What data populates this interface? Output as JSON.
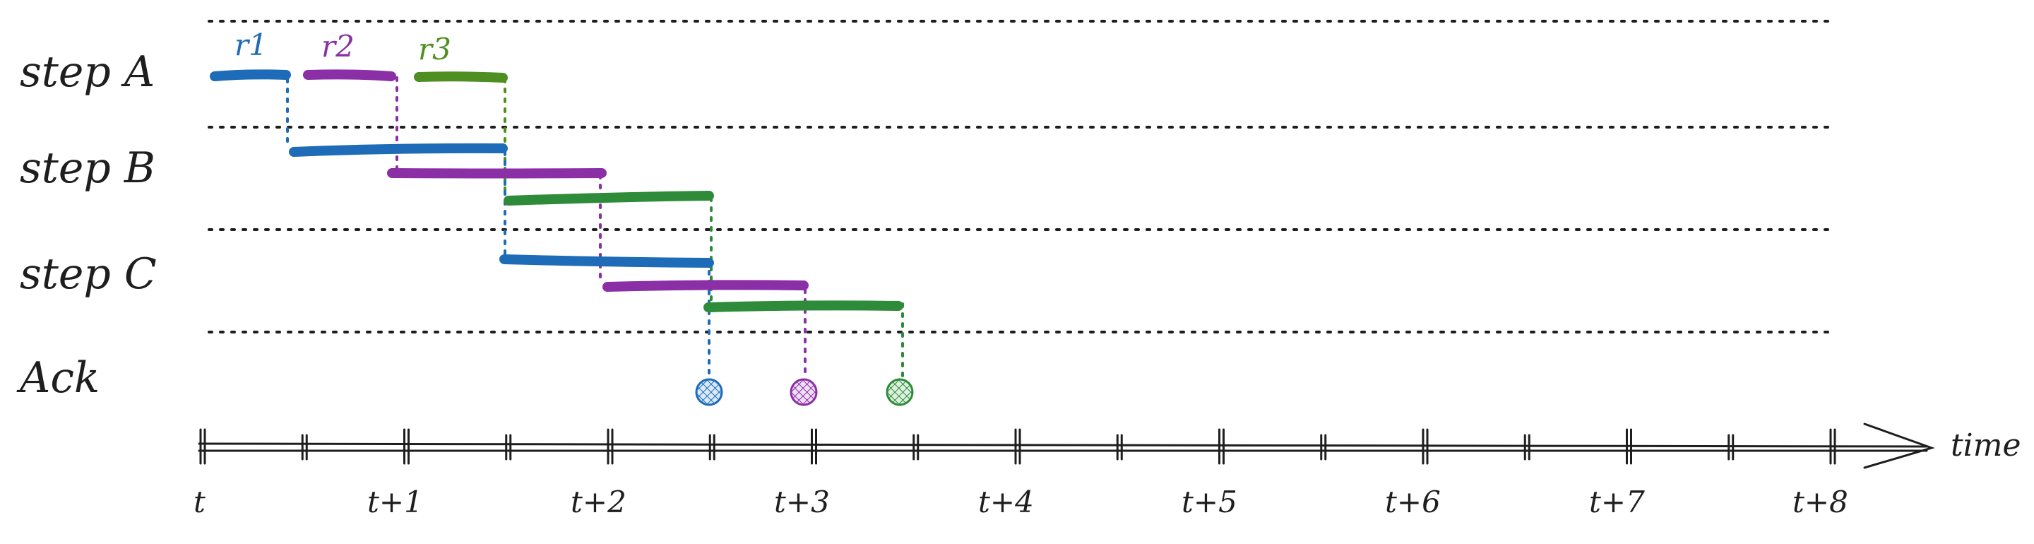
{
  "rows": [
    {
      "id": "A",
      "label": "step A"
    },
    {
      "id": "B",
      "label": "step B"
    },
    {
      "id": "C",
      "label": "step C"
    },
    {
      "id": "Ack",
      "label": "Ack"
    }
  ],
  "requests": [
    {
      "id": "r1",
      "label": "r1",
      "color": "#1e6bb8"
    },
    {
      "id": "r2",
      "label": "r2",
      "color": "#8a2fa6"
    },
    {
      "id": "r3",
      "label": "r3",
      "color": "#4f8f22"
    }
  ],
  "segment_colors": {
    "r3_later": "#2e8b3a"
  },
  "axis": {
    "title": "time",
    "ticks": [
      "t",
      "t+1",
      "t+2",
      "t+3",
      "t+4",
      "t+5",
      "t+6",
      "t+7",
      "t+8"
    ]
  },
  "colors": {
    "ink": "#1e1e1e",
    "ack_fill_blue": "#cfe3f7",
    "ack_fill_purple": "#ead6f3",
    "ack_fill_green": "#d2ecd6"
  }
}
